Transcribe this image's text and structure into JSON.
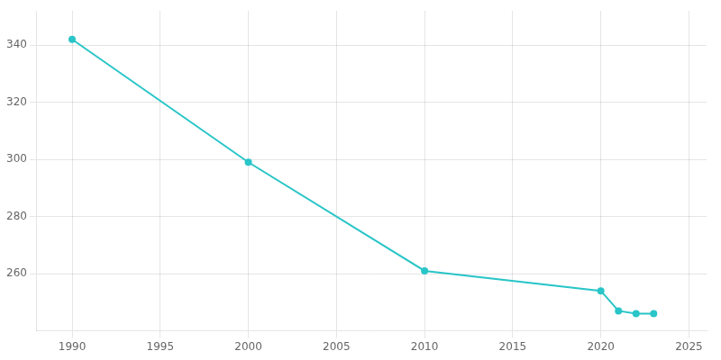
{
  "chart_data": {
    "type": "line",
    "x": [
      1990,
      2000,
      2010,
      2020,
      2021,
      2022,
      2023
    ],
    "values": [
      342,
      299,
      261,
      254,
      247,
      246,
      246
    ],
    "color": "#29c5c8",
    "marker": "circle",
    "xlim": [
      1988,
      2026
    ],
    "ylim": [
      240,
      352
    ],
    "xticks": [
      1990,
      1995,
      2000,
      2005,
      2010,
      2015,
      2020,
      2025
    ],
    "yticks": [
      260,
      280,
      300,
      320,
      340
    ],
    "grid": true
  }
}
